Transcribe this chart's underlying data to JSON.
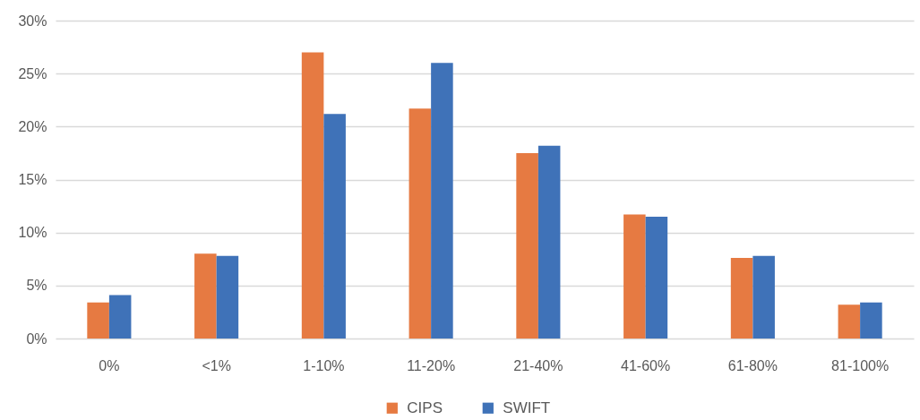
{
  "chart_data": {
    "type": "bar",
    "categories": [
      "0%",
      "<1%",
      "1-10%",
      "11-20%",
      "21-40%",
      "41-60%",
      "61-80%",
      "81-100%"
    ],
    "series": [
      {
        "name": "CIPS",
        "color": "#e67a42",
        "values": [
          3.4,
          8.0,
          27.0,
          21.7,
          17.5,
          11.7,
          7.6,
          3.2
        ]
      },
      {
        "name": "SWIFT",
        "color": "#3f72b8",
        "values": [
          4.1,
          7.8,
          21.2,
          26.0,
          18.2,
          11.5,
          7.8,
          3.4
        ]
      }
    ],
    "ylim": [
      0,
      30
    ],
    "yticks": [
      {
        "value": 0,
        "label": "0%"
      },
      {
        "value": 5,
        "label": "5%"
      },
      {
        "value": 10,
        "label": "10%"
      },
      {
        "value": 15,
        "label": "15%"
      },
      {
        "value": 20,
        "label": "20%"
      },
      {
        "value": 25,
        "label": "25%"
      },
      {
        "value": 30,
        "label": "30%"
      }
    ],
    "grid": "y",
    "legend": "bottom"
  }
}
